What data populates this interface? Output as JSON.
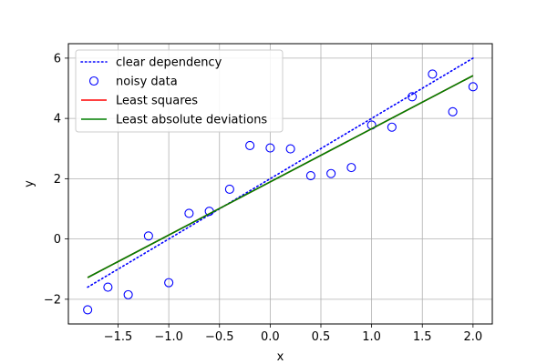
{
  "chart_data": {
    "type": "line",
    "title": "",
    "xlabel": "x",
    "ylabel": "y",
    "xlim": [
      -1.99,
      2.19
    ],
    "ylim": [
      -2.82,
      6.48
    ],
    "xticks": [
      -1.5,
      -1.0,
      -0.5,
      0.0,
      0.5,
      1.0,
      1.5,
      2.0
    ],
    "xtick_labels": [
      "−1.5",
      "−1.0",
      "−0.5",
      "0.0",
      "0.5",
      "1.0",
      "1.5",
      "2.0"
    ],
    "yticks": [
      -2,
      0,
      2,
      4,
      6
    ],
    "ytick_labels": [
      "−2",
      "0",
      "2",
      "4",
      "6"
    ],
    "grid": true,
    "legend_position": "top-left",
    "series": [
      {
        "name": "clear dependency",
        "kind": "line",
        "style": "dotted",
        "color": "#0000ff",
        "x": [
          -1.8,
          2.0
        ],
        "y": [
          -1.6,
          6.0
        ]
      },
      {
        "name": "noisy data",
        "kind": "scatter",
        "marker": "hollow-circle",
        "color": "#0000ff",
        "x": [
          -1.8,
          -1.6,
          -1.4,
          -1.2,
          -1.0,
          -0.8,
          -0.6,
          -0.4,
          -0.2,
          0.0,
          0.2,
          0.4,
          0.6,
          0.8,
          1.0,
          1.2,
          1.4,
          1.6,
          1.8,
          2.0
        ],
        "y": [
          -2.35,
          -1.6,
          -1.85,
          0.1,
          -1.45,
          0.85,
          0.92,
          1.65,
          3.1,
          3.02,
          2.99,
          2.1,
          2.17,
          2.37,
          3.78,
          3.71,
          4.72,
          5.47,
          4.22,
          5.05
        ]
      },
      {
        "name": "Least squares",
        "kind": "line",
        "style": "solid",
        "color": "#ff0000",
        "x": [
          -1.8,
          2.0
        ],
        "y": [
          -1.28,
          5.42
        ]
      },
      {
        "name": "Least absolute deviations",
        "kind": "line",
        "style": "solid",
        "color": "#008000",
        "x": [
          -1.8,
          2.0
        ],
        "y": [
          -1.28,
          5.42
        ]
      }
    ]
  }
}
